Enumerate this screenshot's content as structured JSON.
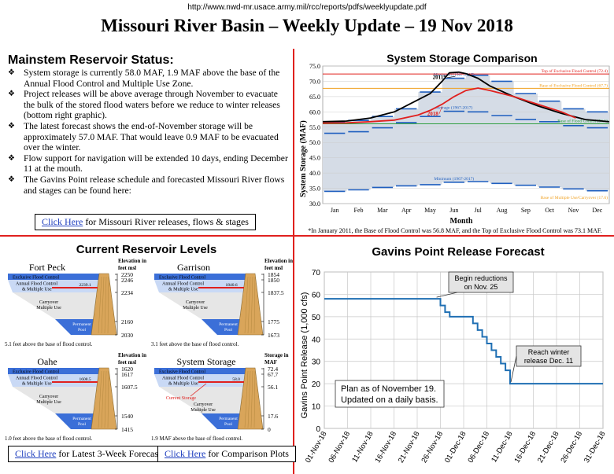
{
  "header": {
    "url": "http://www.nwd-mr.usace.army.mil/rcc/reports/pdfs/weeklyupdate.pdf",
    "title": "Missouri River Basin – Weekly Update – 19 Nov 2018"
  },
  "status": {
    "title": "Mainstem Reservoir Status:",
    "bullets": [
      "System storage is currently 58.0 MAF, 1.9 MAF above the base of the Annual Flood Control and Multiple Use Zone.",
      "Project releases will be above average through November to evacuate the bulk of the stored flood waters before we reduce to winter releases (bottom right graphic).",
      "The latest forecast shows the end-of-November storage will be approximately 57.0 MAF.  That would leave 0.9 MAF to be evacuated over the winter.",
      "Flow support for navigation will be extended 10 days, ending December 11 at the mouth.",
      "The Gavins Point release schedule and forecasted Missouri River flows and stages can be found here:"
    ],
    "link_label": "Click Here",
    "link_rest": " for Missouri River releases, flows & stages"
  },
  "reservoirs": {
    "title": "Current Reservoir Levels",
    "elev_label": [
      "Elevation in",
      "feet msl"
    ],
    "storage_label": [
      "Storage in",
      "MAF"
    ],
    "zone_exclusive": "Exclusive Flood Control",
    "zone_annual": [
      "Annual Flood Control",
      "& Multiple Use"
    ],
    "zone_carryover": [
      "Carryover",
      "Multiple Use"
    ],
    "zone_permanent": [
      "Permanent",
      "Pool"
    ],
    "current_storage_label": "Current Storage",
    "items": [
      {
        "name": "Fort Peck",
        "current": "2239.1",
        "ticks": [
          "2250",
          "2246",
          "2234",
          "2160",
          "2030"
        ],
        "note": "5.1 feet above the base of flood control."
      },
      {
        "name": "Garrison",
        "current": "1840.6",
        "ticks": [
          "1854",
          "1850",
          "1837.5",
          "1775",
          "1673"
        ],
        "note": "3.1 feet above the base of flood control."
      },
      {
        "name": "Oahe",
        "current": "1608.5",
        "ticks": [
          "1620",
          "1617",
          "1607.5",
          "1540",
          "1415"
        ],
        "note": "1.0 feet above the base of flood control."
      },
      {
        "name": "System Storage",
        "current": "58.0",
        "ticks": [
          "72.4",
          "67.7",
          "56.1",
          "17.6",
          "0"
        ],
        "note": "1.9 MAF above the base of flood control."
      }
    ],
    "link1_label": "Click Here",
    "link1_rest": " for Latest 3-Week Forecast",
    "link2_label": "Click Here",
    "link2_rest": " for Comparison Plots"
  },
  "colors": {
    "divider": "#e0201e",
    "exclusive": "#3b6fd8",
    "annual": "#c9d9f5",
    "carryover": "#e6e6e6",
    "permanent": "#3b6fd8",
    "dam": "#d9a55a",
    "release_line": "#1f6fb3",
    "storage_2011": "#000000",
    "storage_2018": "#e0201e",
    "band_fill": "#d5dce6",
    "avg_line": "#1f5fbf"
  },
  "chart_data": [
    {
      "type": "line",
      "title": "System Storage Comparison",
      "xlabel": "Month",
      "ylabel": "System Storage (MAF)",
      "categories": [
        "Jan",
        "Feb",
        "Mar",
        "Apr",
        "May",
        "Jun",
        "Jul",
        "Aug",
        "Sep",
        "Oct",
        "Nov",
        "Dec"
      ],
      "ylim": [
        30,
        75
      ],
      "yticks": [
        "30.0",
        "35.0",
        "40.0",
        "45.0",
        "50.0",
        "55.0",
        "60.0",
        "65.0",
        "70.0",
        "75.0"
      ],
      "footnote": "*In January 2011, the Base of Flood Control was 56.8 MAF, and the Top of Exclusive Flood Control was 73.1 MAF.",
      "reference_lines": [
        {
          "name": "Top of Exclusive Flood Control (72.4)",
          "value": 72.4,
          "color": "#e0201e"
        },
        {
          "name": "Base of Exclusive Flood Control (67.7)",
          "value": 67.7,
          "color": "#f0a020"
        },
        {
          "name": "Base of Flood Control (56.1)",
          "value": 56.1,
          "color": "#2f9e3f"
        },
        {
          "name": "Base of Multiple Use/Carryover (17.6)",
          "value": 17.6,
          "color": "#f0a020"
        }
      ],
      "band_labels": {
        "maximum": "Maximum (1967-2017)",
        "minimum": "Minimum (1967-2017)",
        "average": "Average (1967-2017)"
      },
      "maximum": [
        56.8,
        57.2,
        58.5,
        61.0,
        66.5,
        71.0,
        72.0,
        70.0,
        66.0,
        63.5,
        61.0,
        60.0
      ],
      "average": [
        53.0,
        53.5,
        54.8,
        56.5,
        58.5,
        60.2,
        60.0,
        58.8,
        57.5,
        56.8,
        55.5,
        54.8
      ],
      "minimum": [
        34.0,
        34.5,
        35.3,
        35.8,
        36.2,
        37.0,
        37.2,
        36.6,
        36.0,
        35.4,
        34.8,
        34.2
      ],
      "series": [
        {
          "name": "2011*",
          "color": "#000000",
          "x": [
            0,
            1,
            2,
            3,
            4,
            4.5,
            5,
            5.3,
            5.7,
            6,
            6.5,
            7,
            8,
            9,
            10,
            11,
            12
          ],
          "values": [
            56.8,
            57.0,
            58.0,
            60.0,
            64.0,
            66.0,
            70.0,
            72.8,
            73.0,
            72.5,
            71.0,
            68.5,
            65.0,
            62.0,
            59.5,
            57.5,
            56.8
          ]
        },
        {
          "name": "2018",
          "color": "#e0201e",
          "x": [
            0,
            1,
            2,
            3,
            4,
            4.5,
            5,
            5.5,
            6,
            6.5,
            7,
            8,
            9,
            10,
            10.6
          ],
          "values": [
            56.3,
            56.4,
            56.8,
            57.3,
            59.0,
            60.5,
            62.5,
            65.0,
            67.0,
            67.8,
            67.0,
            65.0,
            62.5,
            60.0,
            58.0
          ]
        }
      ]
    },
    {
      "type": "line",
      "title": "Gavins Point Release Forecast",
      "xlabel": "",
      "ylabel": "Gavins Point Release (1,000 cfs)",
      "ylim": [
        0,
        70
      ],
      "yticks": [
        "0",
        "10",
        "20",
        "30",
        "40",
        "50",
        "60",
        "70"
      ],
      "x_tick_labels": [
        "01-Nov-18",
        "06-Nov-18",
        "11-Nov-18",
        "16-Nov-18",
        "21-Nov-18",
        "26-Nov-18",
        "01-Dec-18",
        "06-Dec-18",
        "11-Dec-18",
        "16-Dec-18",
        "21-Dec-18",
        "26-Dec-18",
        "31-Dec-18"
      ],
      "annotations": [
        {
          "text": [
            "Begin reductions",
            "on Nov. 25"
          ]
        },
        {
          "text": [
            "Reach winter",
            "release Dec. 11"
          ]
        }
      ],
      "note": [
        "Plan as of November 19.",
        "Updated on a daily basis."
      ],
      "series": [
        {
          "name": "",
          "color": "#1f6fb3",
          "x": [
            "01-Nov-18",
            "25-Nov-18",
            "26-Nov-18",
            "27-Nov-18",
            "28-Nov-18",
            "02-Dec-18",
            "03-Dec-18",
            "04-Dec-18",
            "05-Dec-18",
            "06-Dec-18",
            "07-Dec-18",
            "08-Dec-18",
            "09-Dec-18",
            "10-Dec-18",
            "11-Dec-18",
            "31-Dec-18"
          ],
          "values": [
            58,
            58,
            55,
            52,
            50,
            50,
            47,
            44,
            41,
            38,
            35,
            32,
            29,
            26,
            20,
            20
          ]
        }
      ]
    }
  ]
}
